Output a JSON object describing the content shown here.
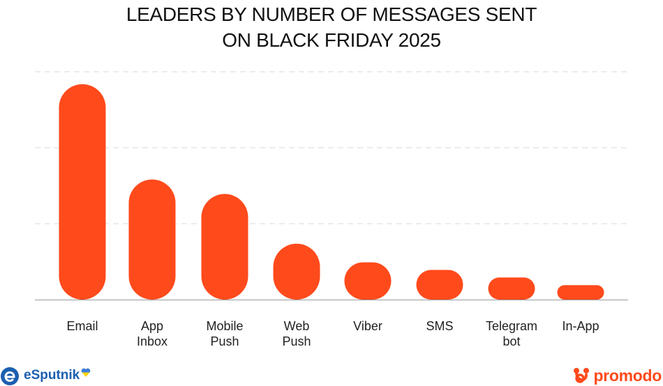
{
  "chart_data": {
    "type": "bar",
    "title_lines": [
      "LEADERS BY NUMBER OF MESSAGES SENT",
      "ON BLACK FRIDAY 2025"
    ],
    "categories": [
      [
        "Email"
      ],
      [
        "App",
        "Inbox"
      ],
      [
        "Mobile",
        "Push"
      ],
      [
        "Web",
        "Push"
      ],
      [
        "Viber"
      ],
      [
        "SMS"
      ],
      [
        "Telegram",
        "bot"
      ],
      [
        "In-App"
      ]
    ],
    "values": [
      312,
      174,
      153,
      81,
      54,
      43,
      32,
      21
    ],
    "ylim": [
      0,
      330
    ],
    "gridlines": [
      110,
      220,
      330
    ],
    "grid": true,
    "bar_color": "#ff4a1c",
    "grid_color": "#d9d9d9",
    "axis_color": "#9a9a9a",
    "label_color": "#222222"
  },
  "brands": {
    "left": {
      "name": "eSputnik",
      "color": "#1b5fb0",
      "icon": "esputnik-e-icon",
      "flag_colors": [
        "#3b7de0",
        "#ffd400"
      ]
    },
    "right": {
      "name": "promodo",
      "color": "#ff4a1c",
      "icon": "promodo-knot-icon"
    }
  }
}
